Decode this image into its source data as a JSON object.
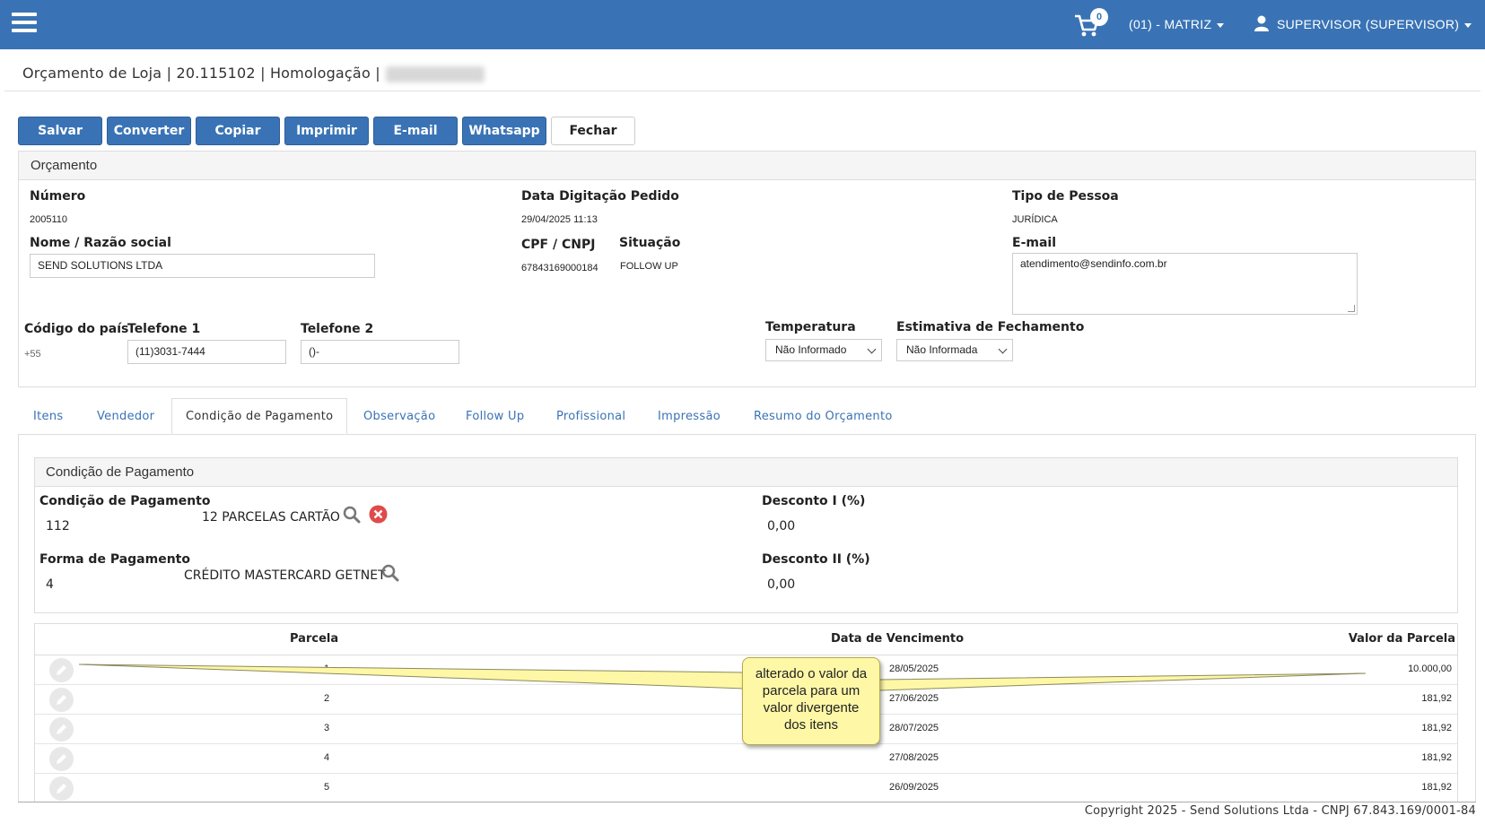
{
  "header": {
    "cart_count": "0",
    "branch": "(01) - MATRIZ",
    "user": "SUPERVISOR (SUPERVISOR)"
  },
  "page": {
    "title": "Orçamento de Loja | 20.115102 | Homologação |"
  },
  "toolbar": {
    "save": "Salvar",
    "convert": "Converter",
    "copy": "Copiar",
    "print": "Imprimir",
    "email": "E-mail",
    "whatsapp": "Whatsapp",
    "close": "Fechar"
  },
  "orcamento": {
    "section_title": "Orçamento",
    "numero_label": "Número",
    "numero_value": "2005110",
    "data_label": "Data Digitação Pedido",
    "data_value": "29/04/2025 11:13",
    "tipo_label": "Tipo de Pessoa",
    "tipo_value": "JURÍDICA",
    "nome_label": "Nome / Razão social",
    "nome_value": "SEND SOLUTIONS LTDA",
    "cpf_label": "CPF / CNPJ",
    "cpf_value": "67843169000184",
    "situacao_label": "Situação",
    "situacao_value": "FOLLOW UP",
    "email_label": "E-mail",
    "email_value": "atendimento@sendinfo.com.br",
    "pais_label": "Código do país",
    "pais_value": "+55",
    "tel1_label": "Telefone 1",
    "tel1_value": "(11)3031-7444",
    "tel2_label": "Telefone 2",
    "tel2_value": "()-",
    "temperatura_label": "Temperatura",
    "temperatura_value": "Não Informado",
    "estimativa_label": "Estimativa de Fechamento",
    "estimativa_value": "Não Informada"
  },
  "tabs": [
    {
      "label": "Itens"
    },
    {
      "label": "Vendedor"
    },
    {
      "label": "Condição de Pagamento"
    },
    {
      "label": "Observação"
    },
    {
      "label": "Follow Up"
    },
    {
      "label": "Profissional"
    },
    {
      "label": "Impressão"
    },
    {
      "label": "Resumo do Orçamento"
    }
  ],
  "pagamento": {
    "section_title": "Condição de Pagamento",
    "condicao_label": "Condição de Pagamento",
    "condicao_code": "112",
    "condicao_desc": "12 PARCELAS CARTÃO",
    "desconto1_label": "Desconto I (%)",
    "desconto1_value": "0,00",
    "forma_label": "Forma de Pagamento",
    "forma_code": "4",
    "forma_desc": "CRÉDITO MASTERCARD GETNET",
    "desconto2_label": "Desconto II (%)",
    "desconto2_value": "0,00"
  },
  "parcelas": {
    "headers": {
      "parcela": "Parcela",
      "vencimento": "Data de Vencimento",
      "valor": "Valor da Parcela"
    },
    "rows": [
      {
        "parcela": "1",
        "vencimento": "28/05/2025",
        "valor": "10.000,00"
      },
      {
        "parcela": "2",
        "vencimento": "27/06/2025",
        "valor": "181,92"
      },
      {
        "parcela": "3",
        "vencimento": "28/07/2025",
        "valor": "181,92"
      },
      {
        "parcela": "4",
        "vencimento": "27/08/2025",
        "valor": "181,92"
      },
      {
        "parcela": "5",
        "vencimento": "26/09/2025",
        "valor": "181,92"
      }
    ]
  },
  "callout": {
    "line1": "alterado o valor da",
    "line2": "parcela para um",
    "line3": "valor divergente",
    "line4": "dos itens"
  },
  "footer": {
    "copyright": "Copyright 2025 - Send Solutions Ltda - CNPJ 67.843.169/0001-84"
  }
}
